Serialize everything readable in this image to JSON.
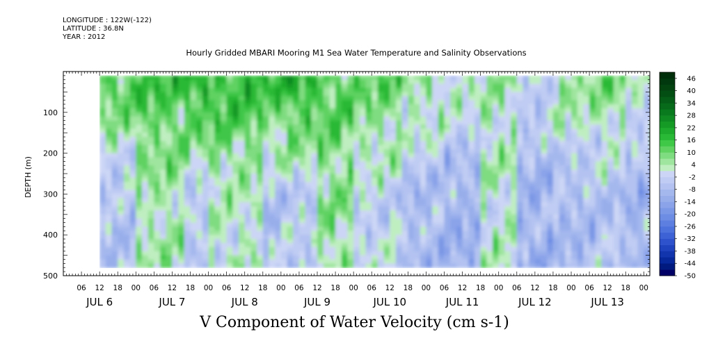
{
  "header": {
    "longitude": "LONGITUDE : 122W(-122)",
    "latitude": "LATITUDE : 36.8N",
    "year": "YEAR : 2012"
  },
  "chart_data": {
    "type": "heatmap",
    "title": "Hourly Gridded MBARI Mooring M1 Sea Water Temperature and Salinity Observations",
    "units_label": "V Component of Water Velocity (cm s-1)",
    "ylabel": "DEPTH (m)",
    "ylim": [
      500,
      0
    ],
    "y_ticks": [
      "100",
      "200",
      "300",
      "400",
      "500"
    ],
    "x_hour_ticks": [
      "06",
      "12",
      "18",
      "00",
      "06",
      "12",
      "18",
      "00",
      "06",
      "12",
      "18",
      "00",
      "06",
      "12",
      "18",
      "00",
      "06",
      "12",
      "18",
      "00",
      "06",
      "12",
      "18",
      "00",
      "06",
      "12",
      "18",
      "00",
      "06",
      "12",
      "18",
      "00"
    ],
    "x_day_labels": [
      "JUL 6",
      "JUL 7",
      "JUL 8",
      "JUL 9",
      "JUL 10",
      "JUL 11",
      "JUL 12",
      "JUL 13"
    ],
    "colorbar": {
      "labels": [
        "46",
        "40",
        "34",
        "28",
        "22",
        "16",
        "10",
        "4",
        "-2",
        "-8",
        "-14",
        "-20",
        "-26",
        "-32",
        "-38",
        "-44",
        "-50"
      ],
      "levels": [
        -50,
        -47,
        -44,
        -41,
        -38,
        -35,
        -32,
        -29,
        -26,
        -23,
        -20,
        -17,
        -14,
        -11,
        -8,
        -5,
        -2,
        1,
        4,
        7,
        10,
        13,
        16,
        19,
        22,
        25,
        28,
        31,
        34,
        37,
        40,
        43,
        46,
        49
      ],
      "colors": [
        "#000066",
        "#001a80",
        "#06289a",
        "#1234ad",
        "#1f42bf",
        "#2d52cc",
        "#3d62d6",
        "#4d72dc",
        "#5d80e0",
        "#6d8ce4",
        "#7b98e6",
        "#8aa3e9",
        "#98aeeb",
        "#a5b8ee",
        "#b3c2f1",
        "#c0ccf3",
        "#ccd5f5",
        "#bfeec1",
        "#9fe59f",
        "#7fdc80",
        "#5fd262",
        "#3fc748",
        "#29b936",
        "#1eaa2c",
        "#169a26",
        "#0f8a22",
        "#0a7a1e",
        "#066a1a",
        "#045c16",
        "#034f13",
        "#024310",
        "#01380d",
        "#002e0a"
      ]
    },
    "regimes": [
      {
        "start_hour": 12,
        "end_hour": 24,
        "surface_cm_s": 12,
        "deep_cm_s": -6
      },
      {
        "start_hour": 24,
        "end_hour": 40,
        "surface_cm_s": 14,
        "deep_cm_s": 4
      },
      {
        "start_hour": 40,
        "end_hour": 48,
        "surface_cm_s": 18,
        "deep_cm_s": -4
      },
      {
        "start_hour": 48,
        "end_hour": 66,
        "surface_cm_s": 16,
        "deep_cm_s": 2
      },
      {
        "start_hour": 66,
        "end_hour": 72,
        "surface_cm_s": 14,
        "deep_cm_s": -6
      },
      {
        "start_hour": 72,
        "end_hour": 84,
        "surface_cm_s": 18,
        "deep_cm_s": -4
      },
      {
        "start_hour": 84,
        "end_hour": 96,
        "surface_cm_s": 12,
        "deep_cm_s": 6
      },
      {
        "start_hour": 96,
        "end_hour": 112,
        "surface_cm_s": 10,
        "deep_cm_s": -2
      },
      {
        "start_hour": 112,
        "end_hour": 126,
        "surface_cm_s": 6,
        "deep_cm_s": -8
      },
      {
        "start_hour": 126,
        "end_hour": 138,
        "surface_cm_s": 2,
        "deep_cm_s": -10
      },
      {
        "start_hour": 138,
        "end_hour": 150,
        "surface_cm_s": 4,
        "deep_cm_s": 2
      },
      {
        "start_hour": 150,
        "end_hour": 162,
        "surface_cm_s": -2,
        "deep_cm_s": -10
      },
      {
        "start_hour": 162,
        "end_hour": 176,
        "surface_cm_s": 6,
        "deep_cm_s": -8
      },
      {
        "start_hour": 176,
        "end_hour": 186,
        "surface_cm_s": 8,
        "deep_cm_s": -6
      },
      {
        "start_hour": 186,
        "end_hour": 198,
        "surface_cm_s": 2,
        "deep_cm_s": -10
      }
    ]
  }
}
